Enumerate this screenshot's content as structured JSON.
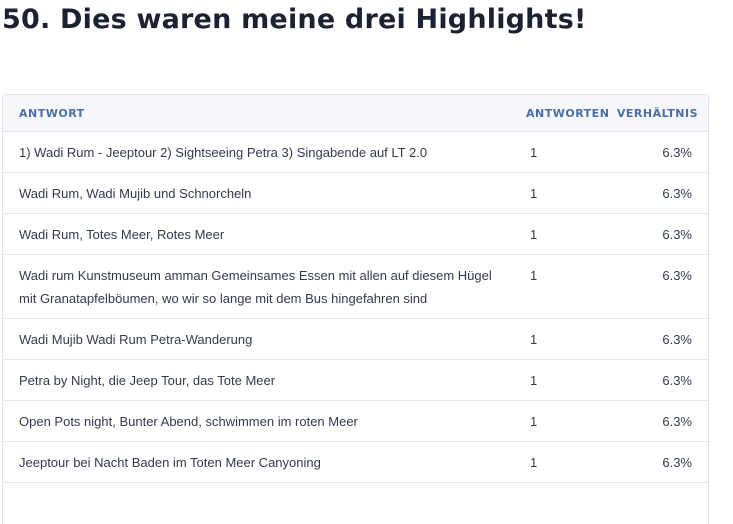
{
  "page": {
    "title": "50. Dies waren meine drei Highlights!"
  },
  "table": {
    "headers": {
      "answer": "ANTWORT",
      "count": "ANTWORTEN",
      "ratio": "VERHÄLTNIS"
    },
    "rows": [
      {
        "answer": "1) Wadi Rum - Jeeptour 2) Sightseeing Petra 3) Singabende auf LT 2.0",
        "count": "1",
        "ratio": "6.3%"
      },
      {
        "answer": "Wadi Rum, Wadi Mujib und Schnorcheln",
        "count": "1",
        "ratio": "6.3%"
      },
      {
        "answer": "Wadi Rum, Totes Meer, Rotes Meer",
        "count": "1",
        "ratio": "6.3%"
      },
      {
        "answer": "Wadi rum Kunstmuseum amman Gemeinsames Essen mit allen auf diesem Hügel mit Granatapfelböumen, wo wir so lange mit dem Bus hingefahren sind",
        "count": "1",
        "ratio": "6.3%"
      },
      {
        "answer": "Wadi Mujib Wadi Rum Petra-Wanderung",
        "count": "1",
        "ratio": "6.3%"
      },
      {
        "answer": "Petra by Night, die Jeep Tour, das Tote Meer",
        "count": "1",
        "ratio": "6.3%"
      },
      {
        "answer": "Open Pots night, Bunter Abend, schwimmen im roten Meer",
        "count": "1",
        "ratio": "6.3%"
      },
      {
        "answer": "Jeeptour bei Nacht Baden im Toten Meer Canyoning",
        "count": "1",
        "ratio": "6.3%"
      }
    ]
  }
}
